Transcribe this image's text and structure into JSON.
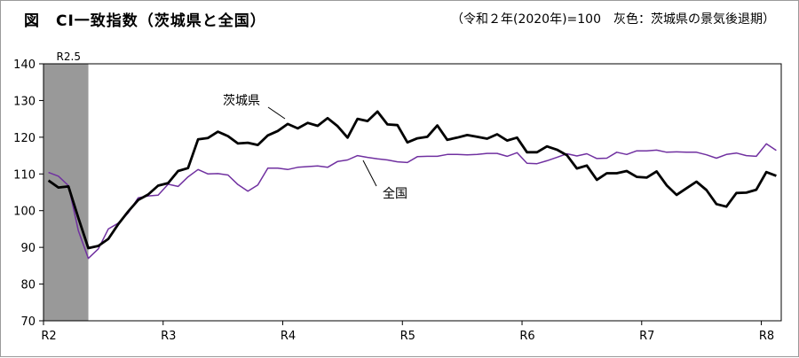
{
  "header": {
    "title": "図　CI一致指数（茨城県と全国）",
    "subtitle": "（令和２年(2020年)=100　灰色：茨城県の景気後退期）"
  },
  "chart_data": {
    "type": "line",
    "ylim": [
      70,
      140
    ],
    "yticks": [
      70,
      80,
      90,
      100,
      110,
      120,
      130,
      140
    ],
    "x_ticks": [
      {
        "label": "R2",
        "index": 0
      },
      {
        "label": "R3",
        "index": 12
      },
      {
        "label": "R4",
        "index": 24
      },
      {
        "label": "R5",
        "index": 36
      },
      {
        "label": "R6",
        "index": 48
      },
      {
        "label": "R7",
        "index": 60
      },
      {
        "label": "R8",
        "index": 72
      }
    ],
    "recession": {
      "start_index": 0,
      "end_index": 4.5,
      "label": "R2.5",
      "color": "#999999"
    },
    "grid": false,
    "series": [
      {
        "name": "茨城県",
        "color": "#000000",
        "values": [
          108.2,
          106.3,
          106.6,
          98.0,
          89.8,
          90.4,
          92.3,
          96.3,
          99.8,
          102.9,
          104.4,
          106.8,
          107.5,
          110.8,
          111.6,
          119.4,
          119.8,
          121.5,
          120.3,
          118.3,
          118.5,
          117.9,
          120.5,
          121.7,
          123.6,
          122.4,
          123.9,
          123.1,
          125.2,
          123.0,
          119.9,
          125.0,
          124.4,
          127.0,
          123.5,
          123.3,
          118.6,
          119.7,
          120.1,
          123.2,
          119.3,
          119.9,
          120.6,
          120.1,
          119.6,
          120.8,
          119.1,
          119.9,
          115.9,
          115.9,
          117.5,
          116.6,
          115.1,
          111.5,
          112.3,
          108.4,
          110.2,
          110.2,
          110.8,
          109.2,
          109.0,
          110.7,
          106.9,
          104.3,
          106.1,
          107.9,
          105.6,
          101.8,
          101.1,
          104.8,
          104.9,
          105.7,
          110.5,
          109.5
        ]
      },
      {
        "name": "全国",
        "color": "#7030a0",
        "values": [
          110.4,
          109.4,
          106.8,
          94.5,
          87.0,
          89.6,
          95.0,
          96.6,
          99.4,
          103.5,
          104.0,
          104.2,
          107.2,
          106.6,
          109.2,
          111.2,
          110.0,
          110.1,
          109.7,
          107.1,
          105.3,
          107.0,
          111.6,
          111.6,
          111.2,
          111.8,
          112.0,
          112.2,
          111.8,
          113.4,
          113.8,
          115.0,
          114.5,
          114.1,
          113.8,
          113.3,
          113.1,
          114.7,
          114.8,
          114.8,
          115.3,
          115.3,
          115.2,
          115.3,
          115.6,
          115.6,
          114.8,
          115.8,
          112.9,
          112.8,
          113.6,
          114.5,
          115.5,
          114.9,
          115.5,
          114.2,
          114.3,
          115.9,
          115.3,
          116.3,
          116.3,
          116.5,
          115.9,
          116.0,
          115.9,
          115.9,
          115.2,
          114.3,
          115.3,
          115.7,
          115.0,
          114.8,
          118.2,
          116.4
        ]
      }
    ]
  }
}
